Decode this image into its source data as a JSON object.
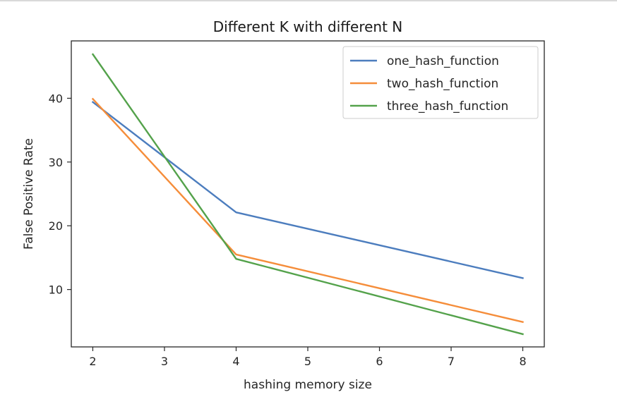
{
  "chart_data": {
    "type": "line",
    "title": "Different K with different N",
    "xlabel": "hashing memory size",
    "ylabel": "False Positive Rate",
    "x": [
      2,
      4,
      8
    ],
    "xlim": [
      1.7,
      8.3
    ],
    "ylim": [
      1,
      49
    ],
    "xticks": [
      2,
      3,
      4,
      5,
      6,
      7,
      8
    ],
    "yticks": [
      10,
      20,
      30,
      40
    ],
    "legend_position": "upper right",
    "series": [
      {
        "name": "one_hash_function",
        "color": "#4c7dbe",
        "values": [
          39.4,
          22.1,
          11.8
        ]
      },
      {
        "name": "two_hash_function",
        "color": "#f58d3a",
        "values": [
          39.9,
          15.5,
          4.9
        ]
      },
      {
        "name": "three_hash_function",
        "color": "#54a24b",
        "values": [
          46.9,
          14.8,
          3.0
        ]
      }
    ]
  }
}
